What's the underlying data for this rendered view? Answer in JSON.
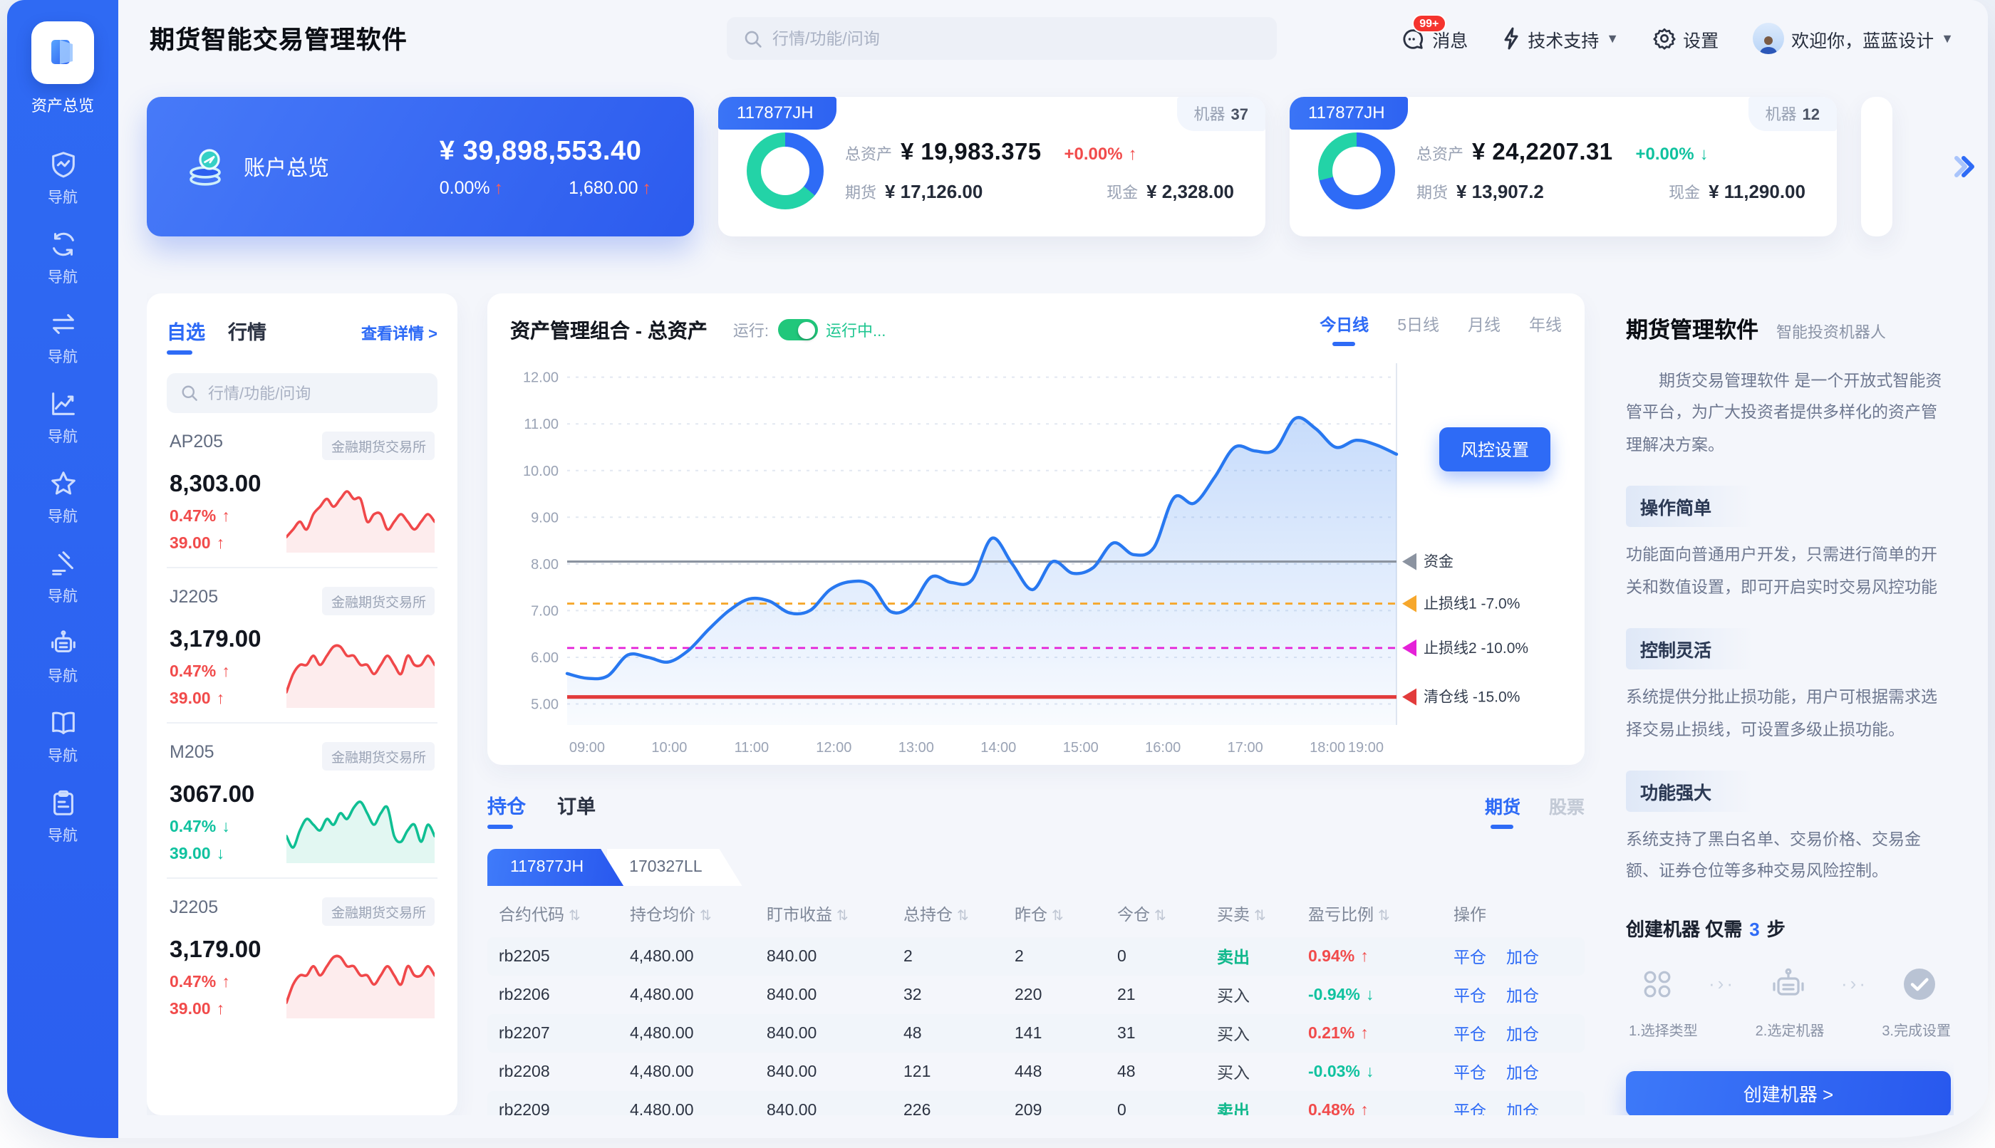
{
  "app": {
    "title": "期货智能交易管理软件"
  },
  "sidebar": {
    "active_label": "资产总览",
    "items": [
      {
        "icon": "shield-icon",
        "label": "导航"
      },
      {
        "icon": "sync-icon",
        "label": "导航"
      },
      {
        "icon": "swap-icon",
        "label": "导航"
      },
      {
        "icon": "trend-icon",
        "label": "导航"
      },
      {
        "icon": "star-icon",
        "label": "导航"
      },
      {
        "icon": "gavel-icon",
        "label": "导航"
      },
      {
        "icon": "robot-icon",
        "label": "导航"
      },
      {
        "icon": "book-icon",
        "label": "导航"
      },
      {
        "icon": "clipboard-icon",
        "label": "导航"
      }
    ]
  },
  "header": {
    "search_placeholder": "行情/功能/问询",
    "message_badge": "99+",
    "message_label": "消息",
    "support_label": "技术支持",
    "settings_label": "设置",
    "welcome": "欢迎你，蓝蓝设计"
  },
  "overview": {
    "title": "账户总览",
    "total": "¥ 39,898,553.40",
    "pct": "0.00%",
    "amount": "1,680.00"
  },
  "accounts": [
    {
      "id": "117877JH",
      "machine_label": "机器",
      "machine_count": "37",
      "total_label": "总资产",
      "total": "¥ 19,983.375",
      "change": "+0.00%",
      "change_dir": "up",
      "futures_label": "期货",
      "futures": "¥ 17,126.00",
      "cash_label": "现金",
      "cash": "¥ 2,328.00",
      "donut": {
        "segments": [
          {
            "color": "#2e6bf6",
            "pct": 36
          },
          {
            "color": "#23d3a7",
            "pct": 64
          }
        ]
      }
    },
    {
      "id": "117877JH",
      "machine_label": "机器",
      "machine_count": "12",
      "total_label": "总资产",
      "total": "¥ 24,2207.31",
      "change": "+0.00%",
      "change_dir": "down",
      "futures_label": "期货",
      "futures": "¥ 13,907.2",
      "cash_label": "现金",
      "cash": "¥ 11,290.00",
      "donut": {
        "segments": [
          {
            "color": "#2e6bf6",
            "pct": 71
          },
          {
            "color": "#23d3a7",
            "pct": 29
          }
        ]
      }
    }
  ],
  "watchlist": {
    "tab_favorites": "自选",
    "tab_quotes": "行情",
    "detail_link": "查看详情 >",
    "search_placeholder": "行情/功能/问询",
    "items": [
      {
        "code": "AP205",
        "exchange": "金融期货交易所",
        "price": "8,303.00",
        "pct": "0.47%",
        "change": "39.00",
        "dir": "up",
        "spark": [
          3,
          4,
          5,
          4,
          6,
          7,
          8,
          7,
          8,
          9,
          8,
          8,
          5,
          6,
          6,
          4,
          5,
          6,
          5,
          4,
          5,
          6,
          5
        ]
      },
      {
        "code": "J2205",
        "exchange": "金融期货交易所",
        "price": "3,179.00",
        "pct": "0.47%",
        "change": "39.00",
        "dir": "up",
        "spark": [
          3,
          5,
          6,
          6,
          7,
          6,
          7,
          8,
          8,
          7,
          7,
          6,
          6,
          5,
          6,
          7,
          6,
          5,
          7,
          6,
          6,
          7,
          6
        ]
      },
      {
        "code": "M205",
        "exchange": "金融期货交易所",
        "price": "3067.00",
        "pct": "0.47%",
        "change": "39.00",
        "dir": "down",
        "spark": [
          4,
          2,
          5,
          7,
          6,
          5,
          7,
          6,
          8,
          7,
          9,
          10,
          8,
          6,
          8,
          9,
          4,
          3,
          5,
          6,
          3,
          6,
          4
        ]
      },
      {
        "code": "J2205",
        "exchange": "金融期货交易所",
        "price": "3,179.00",
        "pct": "0.47%",
        "change": "39.00",
        "dir": "up",
        "spark": [
          3,
          5,
          6,
          6,
          7,
          6,
          7,
          8,
          8,
          7,
          7,
          6,
          6,
          5,
          6,
          7,
          6,
          5,
          7,
          6,
          6,
          7,
          6
        ]
      }
    ]
  },
  "portfolio": {
    "title": "资产管理组合 - 总资产",
    "run_label": "运行:",
    "run_status": "运行中...",
    "tabs": [
      "今日线",
      "5日线",
      "月线",
      "年线"
    ],
    "risk_button": "风控设置"
  },
  "chart_data": {
    "type": "area",
    "title": "资产管理组合 - 总资产",
    "x_labels": [
      "09:00",
      "10:00",
      "11:00",
      "12:00",
      "13:00",
      "14:00",
      "15:00",
      "16:00",
      "17:00",
      "18:00",
      "19:00"
    ],
    "y_ticks": [
      5,
      6,
      7,
      8,
      9,
      10,
      11,
      12
    ],
    "ylim": [
      4.55,
      12.3
    ],
    "grid": true,
    "legend_position": "right",
    "line_color": "#2878f0",
    "series": [
      {
        "name": "总资产",
        "values": [
          5.65,
          5.55,
          5.6,
          6.05,
          6.0,
          5.9,
          6.15,
          6.6,
          7.0,
          7.25,
          7.2,
          6.95,
          7.0,
          7.45,
          7.62,
          7.55,
          6.98,
          7.1,
          7.72,
          7.6,
          7.65,
          8.55,
          8.0,
          7.45,
          8.05,
          7.8,
          7.92,
          8.45,
          8.2,
          8.35,
          9.42,
          9.3,
          9.85,
          10.5,
          10.42,
          10.45,
          11.12,
          10.9,
          10.5,
          10.65,
          10.55,
          10.35
        ]
      }
    ],
    "reference_lines": [
      {
        "label": "资金",
        "value": 8.05,
        "color": "#8b93a0",
        "style": "solid",
        "width": 1.6
      },
      {
        "label": "止损线1 -7.0%",
        "value": 7.15,
        "color": "#f6a72c",
        "style": "dashed",
        "width": 1.4
      },
      {
        "label": "止损线2 -10.0%",
        "value": 6.2,
        "color": "#e521d8",
        "style": "dashed",
        "width": 1.4
      },
      {
        "label": "清仓线 -15.0%",
        "value": 5.15,
        "color": "#e23b3b",
        "style": "solid",
        "width": 2.6
      }
    ]
  },
  "positions": {
    "tab_positions": "持仓",
    "tab_orders": "订单",
    "market_futures": "期货",
    "market_stocks": "股票",
    "account_tabs": [
      "117877JH",
      "170327LL"
    ],
    "columns": [
      "合约代码",
      "持仓均价",
      "盯市收益",
      "总持仓",
      "昨仓",
      "今仓",
      "买卖",
      "盈亏比例",
      "操作"
    ],
    "action_close": "平仓",
    "action_add": "加仓",
    "rows": [
      {
        "code": "rb2205",
        "avg": "4,480.00",
        "pnl": "840.00",
        "total": "2",
        "yday": "2",
        "today": "0",
        "side": "卖出",
        "side_type": "sell",
        "ratio": "0.94%",
        "ratio_dir": "up"
      },
      {
        "code": "rb2206",
        "avg": "4,480.00",
        "pnl": "840.00",
        "total": "32",
        "yday": "220",
        "today": "21",
        "side": "买入",
        "side_type": "buy",
        "ratio": "-0.94%",
        "ratio_dir": "down"
      },
      {
        "code": "rb2207",
        "avg": "4,480.00",
        "pnl": "840.00",
        "total": "48",
        "yday": "141",
        "today": "31",
        "side": "买入",
        "side_type": "buy",
        "ratio": "0.21%",
        "ratio_dir": "up"
      },
      {
        "code": "rb2208",
        "avg": "4,480.00",
        "pnl": "840.00",
        "total": "121",
        "yday": "448",
        "today": "48",
        "side": "买入",
        "side_type": "buy",
        "ratio": "-0.03%",
        "ratio_dir": "down"
      },
      {
        "code": "rb2209",
        "avg": "4,480.00",
        "pnl": "840.00",
        "total": "226",
        "yday": "209",
        "today": "0",
        "side": "卖出",
        "side_type": "sell",
        "ratio": "0.48%",
        "ratio_dir": "up"
      }
    ]
  },
  "promo": {
    "title": "期货管理软件",
    "subtitle": "智能投资机器人",
    "intro": "期货交易管理软件 是一个开放式智能资管平台，为广大投资者提供多样化的资产管理解决方案。",
    "sections": [
      {
        "heading": "操作简单",
        "body": "功能面向普通用户开发，只需进行简单的开关和数值设置，即可开启实时交易风控功能"
      },
      {
        "heading": "控制灵活",
        "body": "系统提供分批止损功能，用户可根据需求选择交易止损线，可设置多级止损功能。"
      },
      {
        "heading": "功能强大",
        "body": "系统支持了黑白名单、交易价格、交易金额、证券仓位等多种交易风险控制。"
      }
    ],
    "steps_prefix": "创建机器 仅需",
    "steps_count": "3",
    "steps_suffix": "步",
    "steps": [
      {
        "label": "1.选择类型"
      },
      {
        "label": "2.选定机器"
      },
      {
        "label": "3.完成设置"
      }
    ],
    "create_button": "创建机器 >"
  }
}
